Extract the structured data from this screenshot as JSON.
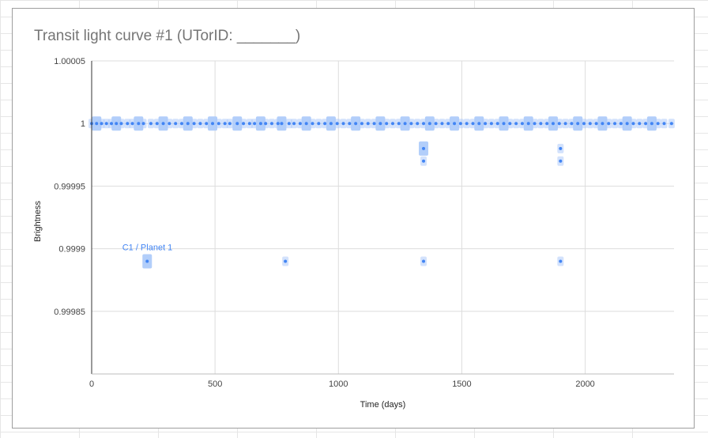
{
  "chart_data": {
    "type": "scatter",
    "title": "Transit light curve #1 (UTorID: _______)",
    "xlabel": "Time (days)",
    "ylabel": "Brightness",
    "xlim": [
      0,
      2360
    ],
    "ylim": [
      0.9998,
      1.00005
    ],
    "x_ticks": [
      0,
      500,
      1000,
      1500,
      2000
    ],
    "x_tick_labels": [
      "0",
      "500",
      "1000",
      "1500",
      "2000"
    ],
    "y_ticks": [
      0.99985,
      0.9999,
      0.99995,
      1,
      1.00005
    ],
    "y_tick_labels": [
      "0.99985",
      "0.9999",
      "0.99995",
      "1",
      "1.00005"
    ],
    "grid": true,
    "legend": "none",
    "colors": {
      "point": "#4285f4",
      "band": "#aecbfa",
      "grid": "#dddddd",
      "axis": "#333333"
    },
    "annotation": {
      "text": "C1 / Planet 1",
      "x": 220,
      "y": 0.99989
    },
    "series": [
      {
        "values": [
          [
            0,
            1.0
          ],
          [
            20,
            1.0
          ],
          [
            40,
            1.0
          ],
          [
            60,
            1.0
          ],
          [
            80,
            1.0
          ],
          [
            100,
            1.0
          ],
          [
            120,
            1.0
          ],
          [
            145,
            1.0
          ],
          [
            165,
            1.0
          ],
          [
            190,
            1.0
          ],
          [
            210,
            1.0
          ],
          [
            240,
            1.0
          ],
          [
            265,
            1.0
          ],
          [
            290,
            1.0
          ],
          [
            315,
            1.0
          ],
          [
            340,
            1.0
          ],
          [
            365,
            1.0
          ],
          [
            390,
            1.0
          ],
          [
            415,
            1.0
          ],
          [
            440,
            1.0
          ],
          [
            465,
            1.0
          ],
          [
            490,
            1.0
          ],
          [
            515,
            1.0
          ],
          [
            540,
            1.0
          ],
          [
            560,
            1.0
          ],
          [
            590,
            1.0
          ],
          [
            615,
            1.0
          ],
          [
            640,
            1.0
          ],
          [
            660,
            1.0
          ],
          [
            685,
            1.0
          ],
          [
            705,
            1.0
          ],
          [
            730,
            1.0
          ],
          [
            755,
            1.0
          ],
          [
            770,
            1.0
          ],
          [
            800,
            1.0
          ],
          [
            820,
            1.0
          ],
          [
            845,
            1.0
          ],
          [
            870,
            1.0
          ],
          [
            895,
            1.0
          ],
          [
            920,
            1.0
          ],
          [
            945,
            1.0
          ],
          [
            970,
            1.0
          ],
          [
            995,
            1.0
          ],
          [
            1020,
            1.0
          ],
          [
            1045,
            1.0
          ],
          [
            1070,
            1.0
          ],
          [
            1095,
            1.0
          ],
          [
            1120,
            1.0
          ],
          [
            1145,
            1.0
          ],
          [
            1170,
            1.0
          ],
          [
            1195,
            1.0
          ],
          [
            1220,
            1.0
          ],
          [
            1245,
            1.0
          ],
          [
            1270,
            1.0
          ],
          [
            1295,
            1.0
          ],
          [
            1320,
            1.0
          ],
          [
            1345,
            1.0
          ],
          [
            1370,
            1.0
          ],
          [
            1395,
            1.0
          ],
          [
            1420,
            1.0
          ],
          [
            1445,
            1.0
          ],
          [
            1470,
            1.0
          ],
          [
            1495,
            1.0
          ],
          [
            1520,
            1.0
          ],
          [
            1545,
            1.0
          ],
          [
            1570,
            1.0
          ],
          [
            1595,
            1.0
          ],
          [
            1620,
            1.0
          ],
          [
            1645,
            1.0
          ],
          [
            1670,
            1.0
          ],
          [
            1695,
            1.0
          ],
          [
            1720,
            1.0
          ],
          [
            1745,
            1.0
          ],
          [
            1770,
            1.0
          ],
          [
            1795,
            1.0
          ],
          [
            1820,
            1.0
          ],
          [
            1845,
            1.0
          ],
          [
            1870,
            1.0
          ],
          [
            1895,
            1.0
          ],
          [
            1920,
            1.0
          ],
          [
            1945,
            1.0
          ],
          [
            1970,
            1.0
          ],
          [
            1995,
            1.0
          ],
          [
            2020,
            1.0
          ],
          [
            2045,
            1.0
          ],
          [
            2070,
            1.0
          ],
          [
            2095,
            1.0
          ],
          [
            2120,
            1.0
          ],
          [
            2145,
            1.0
          ],
          [
            2170,
            1.0
          ],
          [
            2195,
            1.0
          ],
          [
            2220,
            1.0
          ],
          [
            2245,
            1.0
          ],
          [
            2270,
            1.0
          ],
          [
            2295,
            1.0
          ],
          [
            2320,
            1.0
          ],
          [
            2350,
            1.0
          ],
          [
            1345,
            0.99998
          ],
          [
            1345,
            0.99997
          ],
          [
            1900,
            0.99998
          ],
          [
            1900,
            0.99997
          ],
          [
            225,
            0.99989
          ],
          [
            785,
            0.99989
          ],
          [
            1345,
            0.99989
          ],
          [
            1900,
            0.99989
          ]
        ]
      }
    ]
  }
}
